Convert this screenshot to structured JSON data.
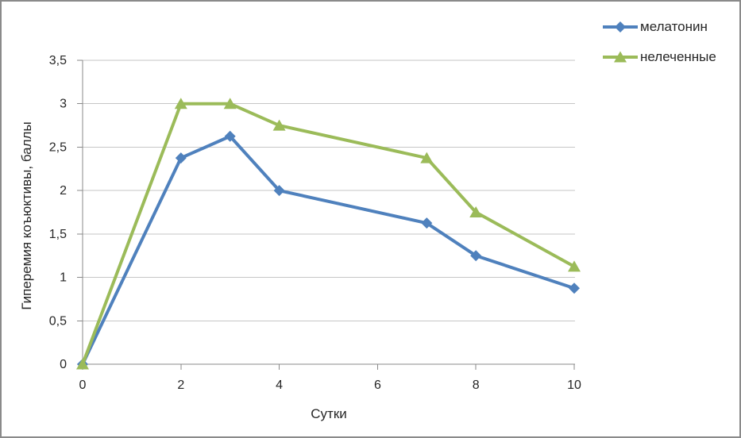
{
  "frame": {
    "border_color": "#8A8A8A",
    "background": "#FFFFFF"
  },
  "chart_data": {
    "type": "line",
    "title": "",
    "xlabel": "Сутки",
    "ylabel": "Гиперемия коъюктивы, баллы",
    "x": [
      0,
      2,
      3,
      4,
      7,
      8,
      10
    ],
    "series": [
      {
        "name": "мелатонин",
        "color": "#4F81BD",
        "marker": "diamond",
        "values": [
          0,
          2.375,
          2.625,
          2.0,
          1.625,
          1.25,
          0.875
        ]
      },
      {
        "name": "нелеченные",
        "color": "#9BBB59",
        "marker": "triangle",
        "values": [
          0,
          3.0,
          3.0,
          2.75,
          2.375,
          1.75,
          1.125
        ]
      }
    ],
    "xlim": [
      0,
      10
    ],
    "ylim": [
      0,
      3.5
    ],
    "x_ticks": {
      "values": [
        0,
        2,
        4,
        6,
        8,
        10
      ],
      "labels": [
        "0",
        "2",
        "4",
        "6",
        "8",
        "10"
      ]
    },
    "y_ticks": {
      "values": [
        0,
        0.5,
        1,
        1.5,
        2,
        2.5,
        3,
        3.5
      ],
      "labels": [
        "0",
        "0,5",
        "1",
        "1,5",
        "2",
        "2,5",
        "3",
        "3,5"
      ]
    },
    "grid": "horizontal",
    "legend_position": "top-right",
    "colors": {
      "gridline": "#C6C6C6",
      "axis": "#898989",
      "text": "#262626"
    }
  }
}
